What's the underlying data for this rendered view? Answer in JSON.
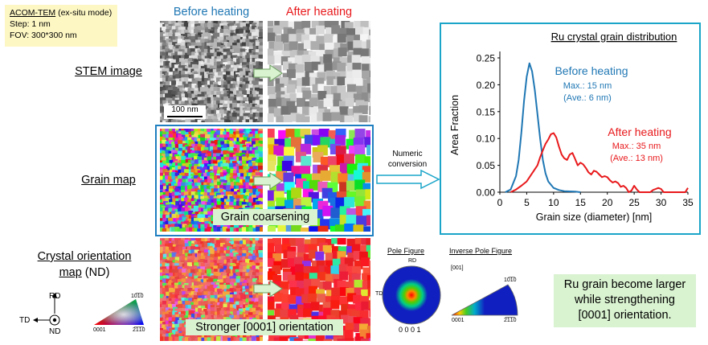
{
  "info": {
    "title": "ACOM-TEM",
    "mode": " (ex-situ mode)",
    "step": "Step: 1 nm",
    "fov": "FOV: 300*300 nm"
  },
  "columns": {
    "before": "Before heating",
    "after": "After heating"
  },
  "rows": {
    "stem": "STEM image",
    "grain": "Grain map",
    "orient_line1": "Crystal orientation",
    "orient_line2_u": "map",
    "orient_line2_rest": " (ND)"
  },
  "scale_bar": "100 nm",
  "labels": {
    "grain_coarsening": "Grain coarsening",
    "stronger_orientation": "Stronger [0001] orientation",
    "numeric_conversion_1": "Numeric",
    "numeric_conversion_2": "conversion"
  },
  "axes_symbol": {
    "rd": "RD",
    "td": "TD",
    "nd": "ND"
  },
  "legend_triangle": {
    "top": "10̅1̅0",
    "left": "0001",
    "right": "2̅1̅1̅0"
  },
  "pole_figure": {
    "title": "Pole Figure",
    "rd": "RD",
    "td": "TD",
    "bottom": "0 0 0 1"
  },
  "inverse_pole_figure": {
    "title": "Inverse Pole Figure",
    "axis": "[001]",
    "top": "10̅1̅0",
    "left": "0001",
    "right": "2̅1̅1̅0"
  },
  "conclusion": {
    "line1": "Ru grain become larger",
    "line2": "while strengthening",
    "line3": "[0001] orientation."
  },
  "colors": {
    "before": "#1f77b4",
    "after": "#e8191c",
    "frame": "#1f7fc0",
    "chart_frame": "#1aa5c9",
    "label_bg": "#d9f2d0",
    "info_bg": "#fdf7c4"
  },
  "chart_data": {
    "type": "line",
    "title": "Ru crystal grain distribution",
    "xlabel": "Grain size (diameter) [nm]",
    "ylabel": "Area Fraction",
    "xlim": [
      0,
      35
    ],
    "ylim": [
      0,
      0.25
    ],
    "xticks": [
      "0",
      "5",
      "10",
      "15",
      "20",
      "25",
      "30",
      "35"
    ],
    "yticks": [
      "0.00",
      "0.05",
      "0.10",
      "0.15",
      "0.20",
      "0.25"
    ],
    "grid": false,
    "series": [
      {
        "name": "Before heating",
        "color": "#1f77b4",
        "annotation": [
          "Max.: 15 nm",
          "(Ave.:  6 nm)"
        ],
        "x": [
          1,
          2,
          3,
          3.5,
          4,
          4.5,
          5,
          5.5,
          6,
          6.5,
          7,
          7.5,
          8,
          8.5,
          9,
          10,
          11,
          12,
          13,
          14,
          15
        ],
        "y": [
          0.0,
          0.005,
          0.03,
          0.06,
          0.11,
          0.17,
          0.215,
          0.24,
          0.225,
          0.19,
          0.145,
          0.1,
          0.06,
          0.035,
          0.02,
          0.008,
          0.004,
          0.002,
          0.0015,
          0.001,
          0.0
        ]
      },
      {
        "name": "After heating",
        "color": "#e8191c",
        "annotation": [
          "Max.: 35 nm",
          "(Ave.: 13 nm)"
        ],
        "x": [
          2,
          3,
          4,
          5,
          6,
          7,
          7.5,
          8,
          8.5,
          9,
          9.5,
          10,
          10.5,
          11,
          11.5,
          12,
          12.5,
          13,
          13.5,
          14,
          14.5,
          15,
          15.5,
          16,
          16.5,
          17,
          17.5,
          18,
          18.5,
          19,
          19.5,
          20,
          20.5,
          21,
          21.5,
          22,
          22.5,
          23,
          23.5,
          24,
          24.5,
          25,
          25.5,
          26,
          26.5,
          27,
          27.5,
          28,
          28.5,
          29,
          29.5,
          30,
          30.5,
          31,
          31.5,
          32,
          32.5,
          33,
          33.5,
          34,
          34.5,
          35
        ],
        "y": [
          0.0,
          0.005,
          0.012,
          0.02,
          0.035,
          0.05,
          0.065,
          0.078,
          0.09,
          0.098,
          0.108,
          0.11,
          0.102,
          0.085,
          0.07,
          0.063,
          0.06,
          0.07,
          0.073,
          0.062,
          0.05,
          0.055,
          0.052,
          0.045,
          0.037,
          0.033,
          0.04,
          0.038,
          0.033,
          0.028,
          0.03,
          0.028,
          0.022,
          0.018,
          0.02,
          0.017,
          0.01,
          0.012,
          0.008,
          0.0,
          0.003,
          0.012,
          0.005,
          0.0,
          0.0,
          0.0,
          0.0,
          0.0,
          0.004,
          0.006,
          0.008,
          0.006,
          0.0,
          0.0,
          0.0,
          0.0,
          0.0,
          0.0,
          0.0,
          0.0,
          0.0,
          0.008
        ]
      }
    ]
  }
}
